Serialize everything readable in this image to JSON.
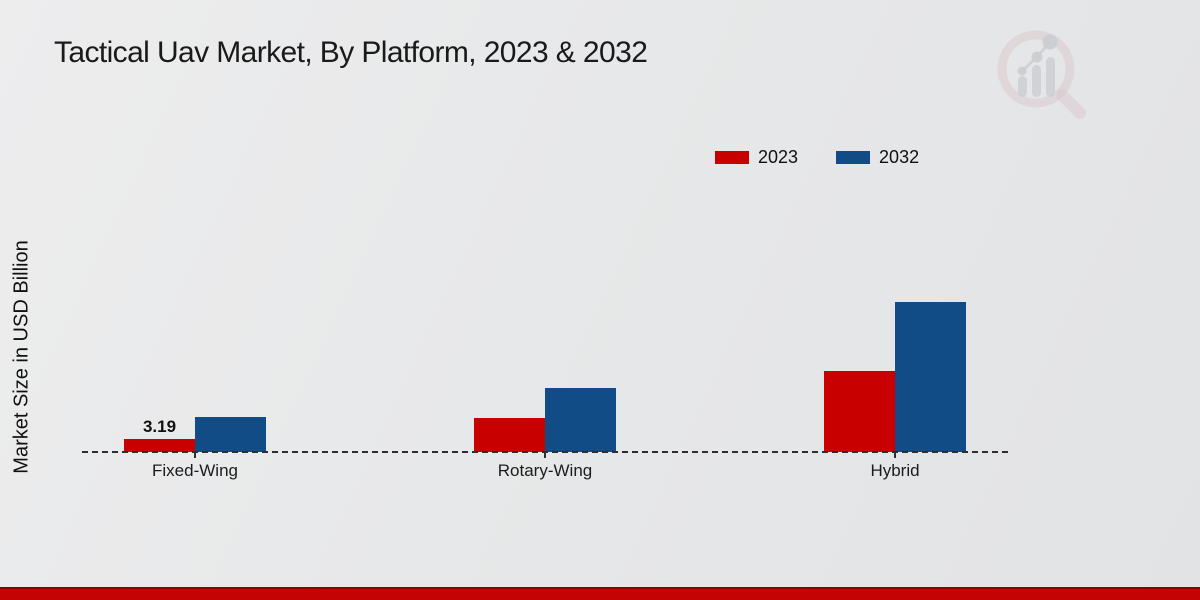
{
  "page": {
    "title": "Tactical Uav Market, By Platform, 2023 & 2032",
    "watermark_icon": "magnifier-bar-chart-logo"
  },
  "chart_data": {
    "type": "bar",
    "title": "Tactical Uav Market, By Platform, 2023 & 2032",
    "xlabel": "",
    "ylabel": "Market Size in USD Billion",
    "categories": [
      "Fixed-Wing",
      "Rotary-Wing",
      "Hybrid"
    ],
    "series": [
      {
        "name": "2023",
        "color": "#c80000",
        "values": [
          3.19,
          7.98,
          19.25
        ],
        "value_labels": [
          "3.19",
          "",
          ""
        ]
      },
      {
        "name": "2032",
        "color": "#114c87",
        "values": [
          8.37,
          15.15,
          35.6
        ],
        "value_labels": [
          "",
          "",
          ""
        ]
      }
    ],
    "ylim": [
      0,
      40
    ],
    "grid": false,
    "legend_position": "top-right",
    "baseline_style": "dashed",
    "colors": {
      "series_2023": "#c80000",
      "series_2032": "#114c87",
      "footer_bar": "#c40404",
      "footer_bar_edge": "#8e0000",
      "background": "#e7e8e9"
    }
  }
}
